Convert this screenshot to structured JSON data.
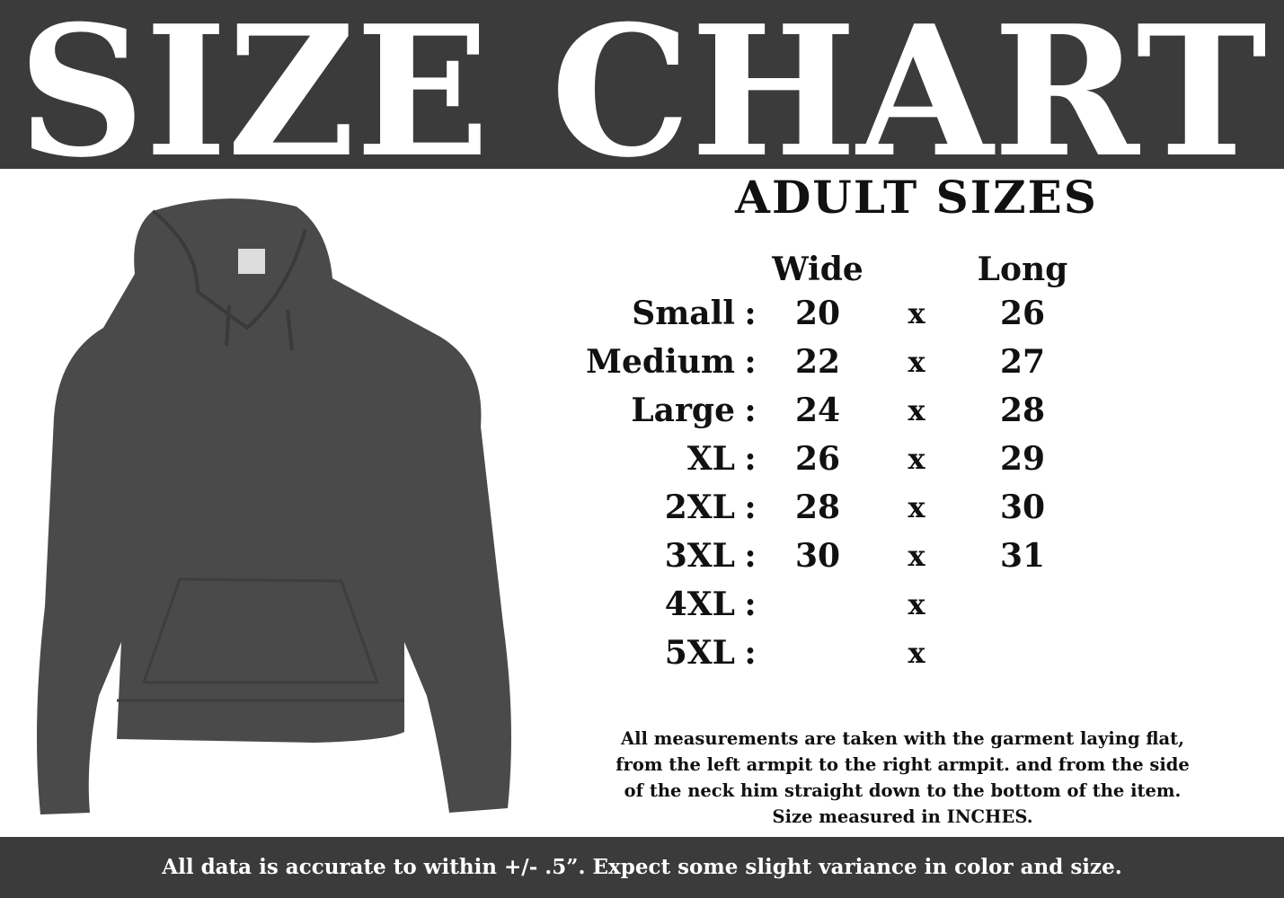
{
  "header": {
    "title": "SIZE CHART"
  },
  "colors": {
    "bar": "#3b3b3b",
    "hoodie": "#4a4a4a",
    "text": "#111111"
  },
  "product_image": {
    "icon": "hoodie-image"
  },
  "table": {
    "title": "ADULT SIZES",
    "col_wide": "Wide",
    "col_long": "Long",
    "separator": "x",
    "colon": ":",
    "rows": [
      {
        "size": "Small",
        "wide": "20",
        "long": "26"
      },
      {
        "size": "Medium",
        "wide": "22",
        "long": "27"
      },
      {
        "size": "Large",
        "wide": "24",
        "long": "28"
      },
      {
        "size": "XL",
        "wide": "26",
        "long": "29"
      },
      {
        "size": "2XL",
        "wide": "28",
        "long": "30"
      },
      {
        "size": "3XL",
        "wide": "30",
        "long": "31"
      },
      {
        "size": "4XL",
        "wide": "",
        "long": ""
      },
      {
        "size": "5XL",
        "wide": "",
        "long": ""
      }
    ]
  },
  "note": {
    "lines": [
      "All measurements are taken with the garment laying flat,",
      "from the left armpit to the right armpit. and from the side",
      "of the neck him straight down to the bottom of the item.",
      "Size measured in INCHES."
    ]
  },
  "footer": {
    "text": "All data is accurate to within +/- .5”.  Expect some slight variance in color and size."
  }
}
